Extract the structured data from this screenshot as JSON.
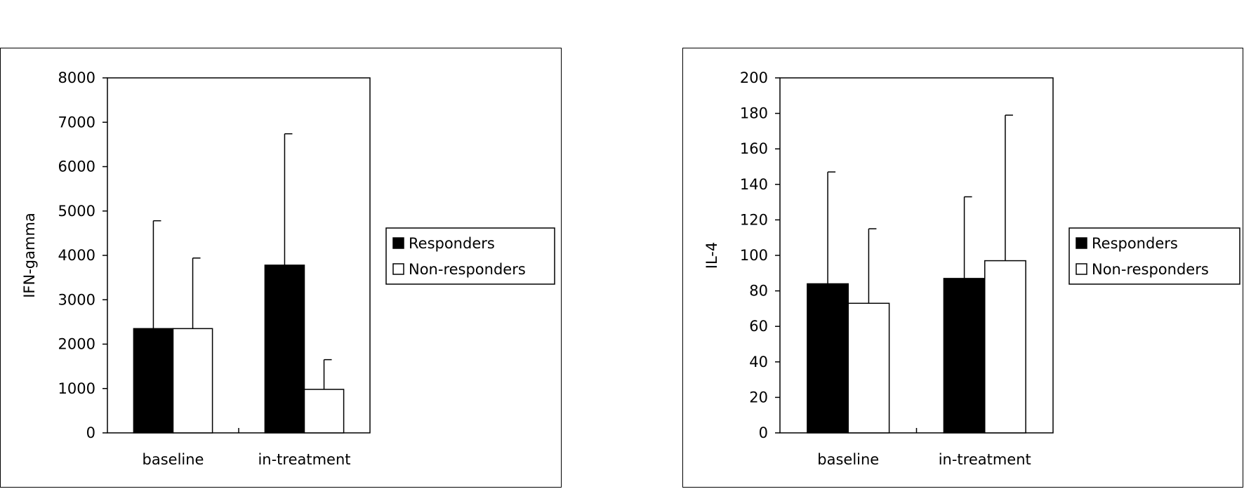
{
  "chart_data": [
    {
      "type": "bar",
      "title": "",
      "xlabel": "",
      "ylabel": "IFN-gamma",
      "ylim": [
        0,
        8000
      ],
      "yticks": [
        0,
        1000,
        2000,
        3000,
        4000,
        5000,
        6000,
        7000,
        8000
      ],
      "categories": [
        "baseline",
        "in-treatment"
      ],
      "series": [
        {
          "name": "Responders",
          "color": "#000000",
          "values": [
            2350,
            3780
          ],
          "error": [
            2430,
            2960
          ]
        },
        {
          "name": "Non-responders",
          "color": "#ffffff",
          "values": [
            2350,
            980
          ],
          "error": [
            1590,
            670
          ]
        }
      ],
      "legend_position": "right",
      "grid": false
    },
    {
      "type": "bar",
      "title": "",
      "xlabel": "",
      "ylabel": "IL-4",
      "ylim": [
        0,
        200
      ],
      "yticks": [
        0,
        20,
        40,
        60,
        80,
        100,
        120,
        140,
        160,
        180,
        200
      ],
      "categories": [
        "baseline",
        "in-treatment"
      ],
      "series": [
        {
          "name": "Responders",
          "color": "#000000",
          "values": [
            84,
            87
          ],
          "error": [
            63,
            46
          ]
        },
        {
          "name": "Non-responders",
          "color": "#ffffff",
          "values": [
            73,
            97
          ],
          "error": [
            42,
            82
          ]
        }
      ],
      "legend_position": "right",
      "grid": false
    }
  ]
}
